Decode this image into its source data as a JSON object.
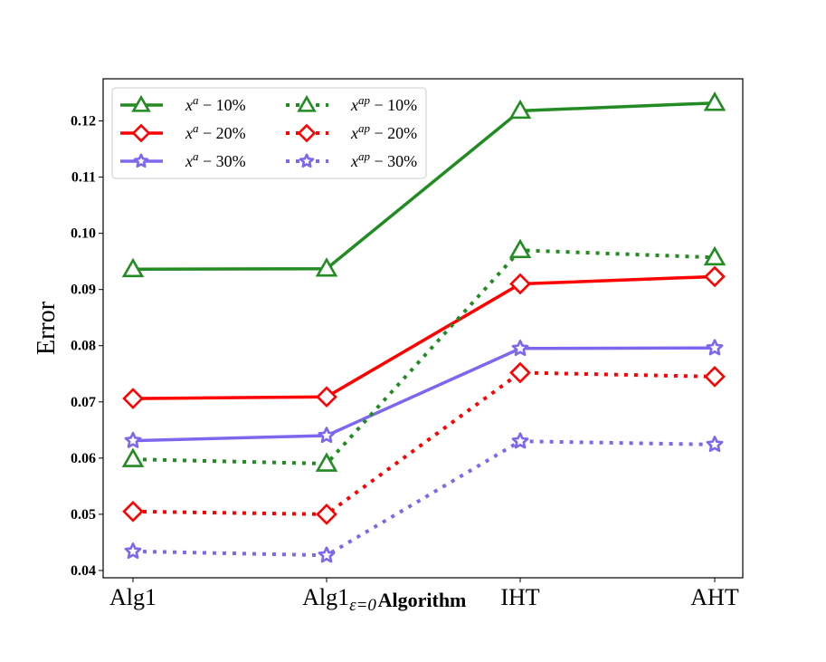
{
  "chart_data": {
    "type": "line",
    "title": "",
    "xlabel": "Algorithm",
    "ylabel": "Error",
    "categories": [
      {
        "base": "Alg1",
        "sub": ""
      },
      {
        "base": "Alg1",
        "sub": "ε=0"
      },
      {
        "base": "IHT",
        "sub": ""
      },
      {
        "base": "AHT",
        "sub": ""
      }
    ],
    "ylim": [
      0.0387,
      0.1275
    ],
    "yticks": [
      "0.04",
      "0.05",
      "0.06",
      "0.07",
      "0.08",
      "0.09",
      "0.10",
      "0.11",
      "0.12"
    ],
    "ytick_values": [
      0.04,
      0.05,
      0.06,
      0.07,
      0.08,
      0.09,
      0.1,
      0.11,
      0.12
    ],
    "grid": false,
    "legend_position": "top-left",
    "legend_columns": 2,
    "series": [
      {
        "name": "x^a − 10%",
        "base": "x",
        "sup": "a",
        "suffix": " − 10%",
        "color": "#228B22",
        "linestyle": "solid",
        "marker": "triangle",
        "values": [
          0.0936,
          0.0937,
          0.1218,
          0.1232
        ]
      },
      {
        "name": "x^a − 20%",
        "base": "x",
        "sup": "a",
        "suffix": " − 20%",
        "color": "#FF0000",
        "linestyle": "solid",
        "marker": "diamond",
        "values": [
          0.0706,
          0.0709,
          0.091,
          0.0923
        ]
      },
      {
        "name": "x^a − 30%",
        "base": "x",
        "sup": "a",
        "suffix": " − 30%",
        "color": "#7B68EE",
        "linestyle": "solid",
        "marker": "star",
        "values": [
          0.0631,
          0.064,
          0.0795,
          0.0796
        ]
      },
      {
        "name": "x^ap − 10%",
        "base": "x",
        "sup": "ap",
        "suffix": " − 10%",
        "color": "#228B22",
        "linestyle": "dotted",
        "marker": "triangle",
        "values": [
          0.0598,
          0.059,
          0.097,
          0.0957
        ]
      },
      {
        "name": "x^ap − 20%",
        "base": "x",
        "sup": "ap",
        "suffix": " − 20%",
        "color": "#FF0000",
        "linestyle": "dotted",
        "marker": "diamond",
        "values": [
          0.0505,
          0.05,
          0.0752,
          0.0745
        ]
      },
      {
        "name": "x^ap − 30%",
        "base": "x",
        "sup": "ap",
        "suffix": " − 30%",
        "color": "#7B68EE",
        "linestyle": "dotted",
        "marker": "star",
        "values": [
          0.0434,
          0.0427,
          0.063,
          0.0624
        ]
      }
    ]
  }
}
